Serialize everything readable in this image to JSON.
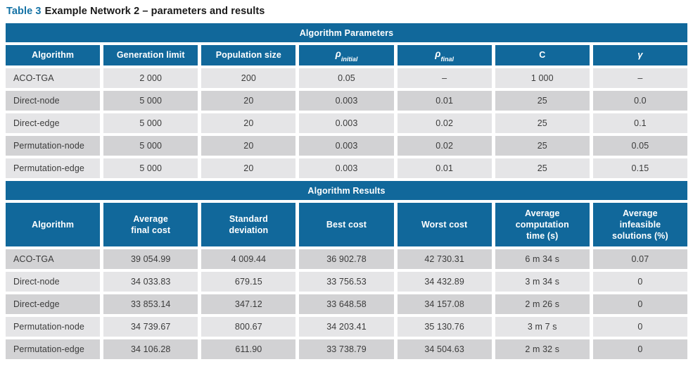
{
  "caption": {
    "label": "Table 3",
    "text": "Example Network 2 – parameters and results"
  },
  "colors": {
    "header_blue": "#11689B",
    "caption_blue": "#1472A5",
    "row_light": "#E5E5E7",
    "row_dark": "#D2D2D4"
  },
  "parameters": {
    "section_title": "Algorithm Parameters",
    "columns": {
      "algorithm": "Algorithm",
      "generation_limit": "Generation limit",
      "population_size": "Population size",
      "rho_symbol": "ρ",
      "rho_initial_sub": "initial",
      "rho_final_sub": "final",
      "c": "C",
      "gamma": "γ"
    },
    "rows": [
      [
        "ACO-TGA",
        "2 000",
        "200",
        "0.05",
        "–",
        "1 000",
        "–"
      ],
      [
        "Direct-node",
        "5 000",
        "20",
        "0.003",
        "0.01",
        "25",
        "0.0"
      ],
      [
        "Direct-edge",
        "5 000",
        "20",
        "0.003",
        "0.02",
        "25",
        "0.1"
      ],
      [
        "Permutation-node",
        "5 000",
        "20",
        "0.003",
        "0.02",
        "25",
        "0.05"
      ],
      [
        "Permutation-edge",
        "5 000",
        "20",
        "0.003",
        "0.01",
        "25",
        "0.15"
      ]
    ]
  },
  "results": {
    "section_title": "Algorithm Results",
    "columns": [
      "Algorithm",
      "Average\nfinal cost",
      "Standard\ndeviation",
      "Best cost",
      "Worst cost",
      "Average\ncomputation\ntime (s)",
      "Average\ninfeasible\nsolutions (%)"
    ],
    "rows": [
      [
        "ACO-TGA",
        "39 054.99",
        "4 009.44",
        "36 902.78",
        "42 730.31",
        "6 m 34 s",
        "0.07"
      ],
      [
        "Direct-node",
        "34 033.83",
        "679.15",
        "33 756.53",
        "34 432.89",
        "3 m 34 s",
        "0"
      ],
      [
        "Direct-edge",
        "33 853.14",
        "347.12",
        "33 648.58",
        "34 157.08",
        "2 m 26 s",
        "0"
      ],
      [
        "Permutation-node",
        "34 739.67",
        "800.67",
        "34 203.41",
        "35 130.76",
        "3 m 7 s",
        "0"
      ],
      [
        "Permutation-edge",
        "34 106.28",
        "611.90",
        "33 738.79",
        "34 504.63",
        "2 m 32 s",
        "0"
      ]
    ]
  }
}
